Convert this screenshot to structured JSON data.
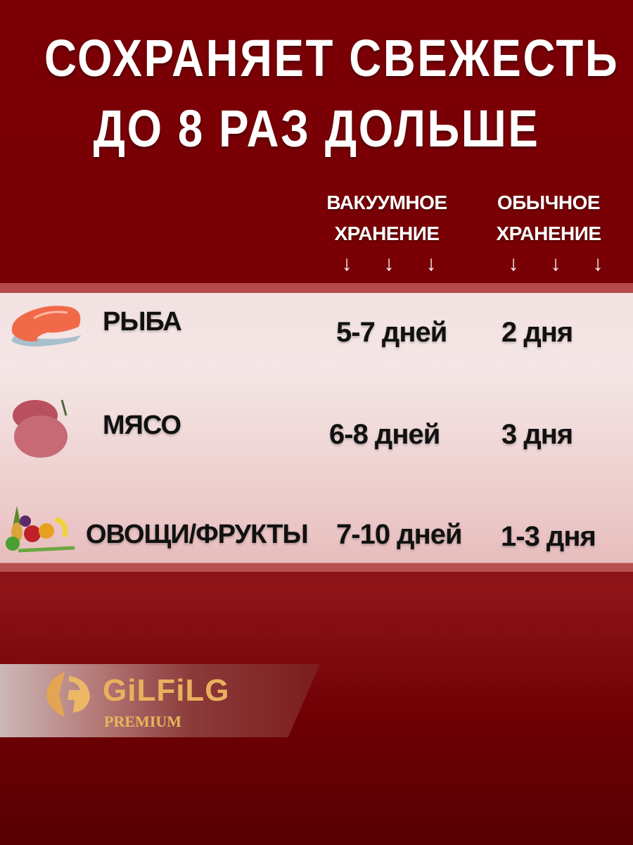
{
  "title": {
    "line1": "СОХРАНЯЕТ СВЕЖЕСТЬ",
    "line2": "ДО 8 РАЗ ДОЛЬШЕ"
  },
  "columns": [
    {
      "line1": "ВАКУУМНОЕ",
      "line2": "ХРАНЕНИЕ"
    },
    {
      "line1": "ОБЫЧНОЕ",
      "line2": "ХРАНЕНИЕ"
    }
  ],
  "arrow_glyph": "↓",
  "rows": [
    {
      "icon": "fish-steak-icon",
      "label": "РЫБА",
      "vacuum": "5-7 дней",
      "regular": "2 дня"
    },
    {
      "icon": "meat-icon",
      "label": "МЯСО",
      "vacuum": "6-8 дней",
      "regular": "3 дня"
    },
    {
      "icon": "vegetables-fruits-icon",
      "label": "ОВОЩИ/ФРУКТЫ",
      "vacuum": "7-10 дней",
      "regular": "1-3 дня"
    }
  ],
  "brand": {
    "name": "GiLFiLG",
    "tagline": "PREMIUM",
    "color": "#e9b15e"
  },
  "colors": {
    "background": "#7a0006",
    "panel": "#f3e1e1"
  }
}
